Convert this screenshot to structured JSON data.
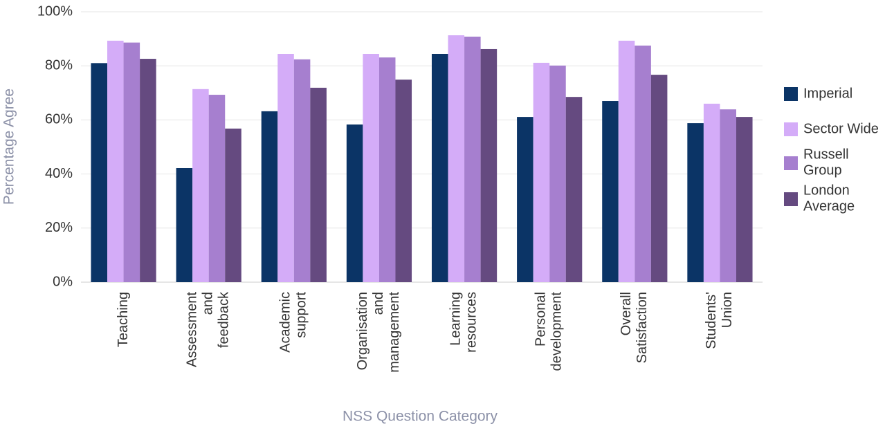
{
  "chart_data": {
    "type": "bar",
    "x_label": "NSS Question Category",
    "y_label": "Percentage Agree",
    "categories": [
      "Teaching",
      "Assessment\nand\nfeedback",
      "Academic\nsupport",
      "Organisation\nand\nmanagement",
      "Learning\nresources",
      "Personal\ndevelopment",
      "Overall\nSatisfaction",
      "Students'\nUnion"
    ],
    "series": [
      {
        "name": "Imperial",
        "color": "#0b3466",
        "values": [
          81,
          42.2,
          63.2,
          58.3,
          84.4,
          61.1,
          67,
          58.8
        ]
      },
      {
        "name": "Sector Wide",
        "color": "#d4acf8",
        "values": [
          89.3,
          71.4,
          84.4,
          84.4,
          91.3,
          81.1,
          89.3,
          66
        ]
      },
      {
        "name": "Russell\nGroup",
        "color": "#a67fcf",
        "values": [
          88.6,
          69.3,
          82.4,
          83.1,
          90.8,
          80.1,
          87.5,
          63.9
        ]
      },
      {
        "name": "London\nAverage",
        "color": "#654a80",
        "values": [
          82.6,
          56.8,
          71.9,
          74.9,
          86.2,
          68.5,
          76.7,
          61.1
        ]
      }
    ],
    "ylim": [
      0,
      100
    ],
    "yticks": [
      {
        "value": 0,
        "label": "0%"
      },
      {
        "value": 20,
        "label": "20%"
      },
      {
        "value": 40,
        "label": "40%"
      },
      {
        "value": 60,
        "label": "60%"
      },
      {
        "value": 80,
        "label": "80%"
      },
      {
        "value": 100,
        "label": "100%"
      }
    ],
    "grid": true,
    "legend": "right"
  }
}
